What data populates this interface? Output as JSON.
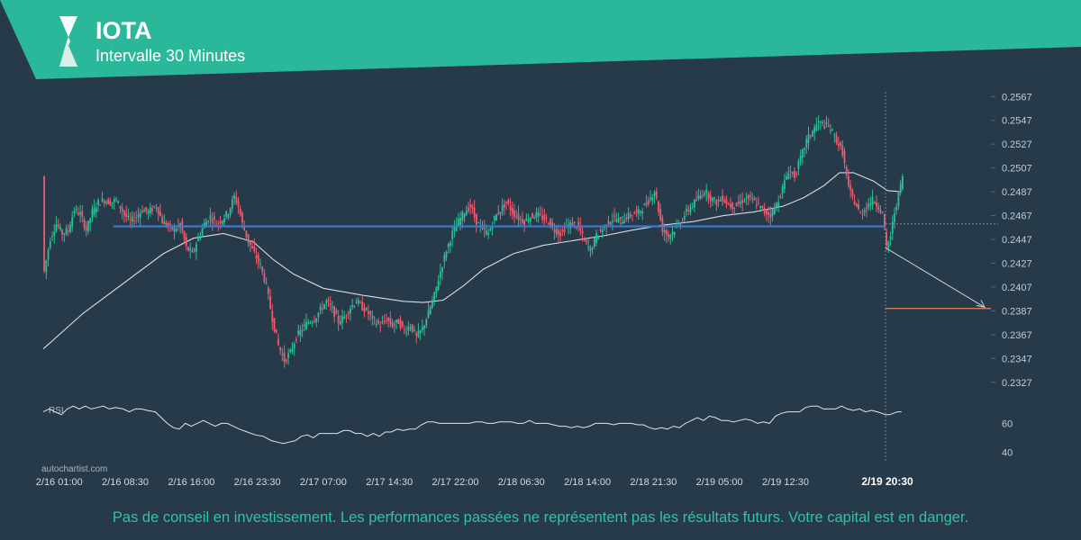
{
  "header": {
    "title": "IOTA",
    "subtitle": "Intervalle 30 Minutes",
    "brand_color": "#2bb89a"
  },
  "watermark": "autochartist.com",
  "disclaimer": "Pas de conseil en investissement. Les performances passées ne représentent pas les résultats futurs. Votre capital est en danger.",
  "colors": {
    "background": "#263a4a",
    "bull": "#2bbf95",
    "bear": "#ee5a6e",
    "support_line": "#3f78c4",
    "moving_average": "#d8dde1",
    "target_line": "#e8835e",
    "rsi_line": "#e2e6e9",
    "disclaimer": "#2fc4a2"
  },
  "chart_data": [
    {
      "type": "candlestick",
      "symbol": "IOTA",
      "interval": "30 Minutes",
      "yticks": [
        "0.2567",
        "0.2547",
        "0.2527",
        "0.2507",
        "0.2487",
        "0.2467",
        "0.2447",
        "0.2427",
        "0.2407",
        "0.2387",
        "0.2367",
        "0.2347",
        "0.2327"
      ],
      "ylim": [
        0.2317,
        0.2574
      ],
      "xticks": [
        "2/16 01:00",
        "2/16 08:30",
        "2/16 16:00",
        "2/16 23:30",
        "2/17 07:00",
        "2/17 14:30",
        "2/17 22:00",
        "2/18 06:30",
        "2/18 14:00",
        "2/18 21:30",
        "2/19 05:00",
        "2/19 12:30",
        "2/19 20:30"
      ],
      "current_time_label": "2/19 20:30",
      "close_path": [
        [
          0,
          0.242
        ],
        [
          3,
          0.2448
        ],
        [
          6,
          0.246
        ],
        [
          9,
          0.2452
        ],
        [
          12,
          0.2455
        ],
        [
          15,
          0.2472
        ],
        [
          18,
          0.2468
        ],
        [
          21,
          0.2455
        ],
        [
          24,
          0.247
        ],
        [
          27,
          0.2478
        ],
        [
          30,
          0.248
        ],
        [
          33,
          0.2478
        ],
        [
          36,
          0.248
        ],
        [
          40,
          0.2468
        ],
        [
          43,
          0.2462
        ],
        [
          46,
          0.2466
        ],
        [
          49,
          0.2472
        ],
        [
          52,
          0.247
        ],
        [
          56,
          0.2475
        ],
        [
          59,
          0.2462
        ],
        [
          62,
          0.2458
        ],
        [
          65,
          0.2455
        ],
        [
          68,
          0.246
        ],
        [
          71,
          0.244
        ],
        [
          74,
          0.2435
        ],
        [
          77,
          0.2448
        ],
        [
          80,
          0.246
        ],
        [
          83,
          0.2466
        ],
        [
          86,
          0.246
        ],
        [
          89,
          0.2464
        ],
        [
          92,
          0.247
        ],
        [
          95,
          0.2483
        ],
        [
          97,
          0.2475
        ],
        [
          99,
          0.246
        ],
        [
          102,
          0.2445
        ],
        [
          105,
          0.2435
        ],
        [
          108,
          0.2425
        ],
        [
          111,
          0.2408
        ],
        [
          114,
          0.238
        ],
        [
          117,
          0.2358
        ],
        [
          120,
          0.2345
        ],
        [
          123,
          0.2352
        ],
        [
          126,
          0.2365
        ],
        [
          129,
          0.2372
        ],
        [
          132,
          0.2378
        ],
        [
          135,
          0.238
        ],
        [
          138,
          0.2388
        ],
        [
          141,
          0.2395
        ],
        [
          144,
          0.2388
        ],
        [
          147,
          0.2378
        ],
        [
          150,
          0.2382
        ],
        [
          153,
          0.239
        ],
        [
          156,
          0.2395
        ],
        [
          159,
          0.239
        ],
        [
          162,
          0.2385
        ],
        [
          165,
          0.2378
        ],
        [
          168,
          0.2375
        ],
        [
          171,
          0.238
        ],
        [
          174,
          0.2375
        ],
        [
          177,
          0.2378
        ],
        [
          180,
          0.237
        ],
        [
          183,
          0.2375
        ],
        [
          186,
          0.2365
        ],
        [
          189,
          0.2372
        ],
        [
          192,
          0.2385
        ],
        [
          195,
          0.24
        ],
        [
          198,
          0.242
        ],
        [
          201,
          0.2438
        ],
        [
          204,
          0.2452
        ],
        [
          207,
          0.2462
        ],
        [
          210,
          0.247
        ],
        [
          213,
          0.2475
        ],
        [
          216,
          0.2462
        ],
        [
          219,
          0.2455
        ],
        [
          222,
          0.2452
        ],
        [
          225,
          0.2465
        ],
        [
          228,
          0.2472
        ],
        [
          231,
          0.2478
        ],
        [
          234,
          0.247
        ],
        [
          237,
          0.2465
        ],
        [
          240,
          0.2462
        ],
        [
          243,
          0.2466
        ],
        [
          246,
          0.2468
        ],
        [
          249,
          0.2465
        ],
        [
          252,
          0.2462
        ],
        [
          255,
          0.2455
        ],
        [
          258,
          0.2452
        ],
        [
          261,
          0.2458
        ],
        [
          264,
          0.246
        ],
        [
          267,
          0.2458
        ],
        [
          270,
          0.2445
        ],
        [
          273,
          0.2438
        ],
        [
          276,
          0.245
        ],
        [
          279,
          0.2456
        ],
        [
          282,
          0.2462
        ],
        [
          285,
          0.2465
        ],
        [
          288,
          0.2462
        ],
        [
          291,
          0.2466
        ],
        [
          294,
          0.2468
        ],
        [
          297,
          0.247
        ],
        [
          300,
          0.2475
        ],
        [
          303,
          0.2482
        ],
        [
          305,
          0.2488
        ],
        [
          307,
          0.2472
        ],
        [
          309,
          0.2455
        ],
        [
          312,
          0.245
        ],
        [
          315,
          0.2455
        ],
        [
          318,
          0.2462
        ],
        [
          321,
          0.247
        ],
        [
          324,
          0.2476
        ],
        [
          327,
          0.2482
        ],
        [
          330,
          0.2488
        ],
        [
          333,
          0.2482
        ],
        [
          336,
          0.2478
        ],
        [
          339,
          0.2482
        ],
        [
          342,
          0.2476
        ],
        [
          345,
          0.2475
        ],
        [
          348,
          0.2478
        ],
        [
          351,
          0.2482
        ],
        [
          354,
          0.248
        ],
        [
          357,
          0.2475
        ],
        [
          360,
          0.247
        ],
        [
          363,
          0.2468
        ],
        [
          366,
          0.2476
        ],
        [
          369,
          0.249
        ],
        [
          372,
          0.2505
        ],
        [
          375,
          0.25
        ],
        [
          378,
          0.2515
        ],
        [
          381,
          0.253
        ],
        [
          384,
          0.2538
        ],
        [
          387,
          0.2545
        ],
        [
          390,
          0.2543
        ],
        [
          393,
          0.254
        ],
        [
          396,
          0.253
        ],
        [
          399,
          0.252
        ],
        [
          402,
          0.249
        ],
        [
          405,
          0.2478
        ],
        [
          408,
          0.2468
        ],
        [
          411,
          0.2475
        ],
        [
          414,
          0.248
        ],
        [
          417,
          0.2475
        ],
        [
          419,
          0.2468
        ],
        [
          421,
          0.244
        ],
        [
          423,
          0.245
        ],
        [
          425,
          0.247
        ],
        [
          427,
          0.2485
        ],
        [
          429,
          0.25
        ]
      ],
      "moving_average_path": [
        [
          0,
          0.2355
        ],
        [
          20,
          0.2385
        ],
        [
          40,
          0.241
        ],
        [
          60,
          0.2435
        ],
        [
          75,
          0.2448
        ],
        [
          90,
          0.2452
        ],
        [
          105,
          0.2445
        ],
        [
          115,
          0.243
        ],
        [
          125,
          0.2418
        ],
        [
          140,
          0.2406
        ],
        [
          160,
          0.24
        ],
        [
          180,
          0.2395
        ],
        [
          190,
          0.2394
        ],
        [
          200,
          0.2396
        ],
        [
          210,
          0.2408
        ],
        [
          220,
          0.2422
        ],
        [
          235,
          0.2435
        ],
        [
          250,
          0.2442
        ],
        [
          265,
          0.2446
        ],
        [
          280,
          0.245
        ],
        [
          295,
          0.2455
        ],
        [
          310,
          0.2459
        ],
        [
          325,
          0.2462
        ],
        [
          340,
          0.2467
        ],
        [
          355,
          0.247
        ],
        [
          370,
          0.2475
        ],
        [
          380,
          0.2482
        ],
        [
          390,
          0.2492
        ],
        [
          398,
          0.2503
        ],
        [
          405,
          0.2503
        ],
        [
          415,
          0.2496
        ],
        [
          422,
          0.2488
        ],
        [
          429,
          0.2487
        ]
      ],
      "horizontal_support": 0.2458,
      "support_range": [
        35,
        421
      ],
      "projection_arrow": {
        "from": [
          421,
          0.244
        ],
        "to": [
          460,
          0.239
        ]
      },
      "target_level": 0.2389,
      "current_price_level": 0.246
    },
    {
      "type": "line",
      "name": "RSI",
      "yticks": [
        "60",
        "40"
      ],
      "ylim": [
        34,
        79
      ],
      "values": [
        [
          0,
          68
        ],
        [
          3,
          70
        ],
        [
          6,
          68
        ],
        [
          9,
          66
        ],
        [
          12,
          70
        ],
        [
          15,
          72
        ],
        [
          18,
          70
        ],
        [
          21,
          72
        ],
        [
          24,
          70
        ],
        [
          27,
          71
        ],
        [
          30,
          72
        ],
        [
          33,
          70
        ],
        [
          36,
          71
        ],
        [
          40,
          70
        ],
        [
          43,
          68
        ],
        [
          46,
          70
        ],
        [
          49,
          70
        ],
        [
          52,
          69
        ],
        [
          56,
          68
        ],
        [
          59,
          64
        ],
        [
          62,
          60
        ],
        [
          65,
          57
        ],
        [
          68,
          56
        ],
        [
          71,
          60
        ],
        [
          74,
          58
        ],
        [
          77,
          60
        ],
        [
          80,
          62
        ],
        [
          83,
          60
        ],
        [
          86,
          58
        ],
        [
          89,
          60
        ],
        [
          92,
          60
        ],
        [
          95,
          58
        ],
        [
          98,
          56
        ],
        [
          102,
          54
        ],
        [
          106,
          52
        ],
        [
          110,
          51
        ],
        [
          114,
          48
        ],
        [
          117,
          47
        ],
        [
          120,
          46
        ],
        [
          123,
          47
        ],
        [
          126,
          48
        ],
        [
          129,
          51
        ],
        [
          132,
          52
        ],
        [
          135,
          50
        ],
        [
          138,
          53
        ],
        [
          141,
          53
        ],
        [
          144,
          53
        ],
        [
          147,
          53
        ],
        [
          150,
          55
        ],
        [
          153,
          55
        ],
        [
          156,
          53
        ],
        [
          159,
          53
        ],
        [
          162,
          51
        ],
        [
          165,
          53
        ],
        [
          168,
          51
        ],
        [
          171,
          54
        ],
        [
          174,
          54
        ],
        [
          177,
          56
        ],
        [
          180,
          55
        ],
        [
          183,
          56
        ],
        [
          186,
          56
        ],
        [
          189,
          59
        ],
        [
          192,
          61
        ],
        [
          195,
          61
        ],
        [
          198,
          60
        ],
        [
          201,
          60
        ],
        [
          204,
          60
        ],
        [
          207,
          60
        ],
        [
          210,
          60
        ],
        [
          213,
          60
        ],
        [
          216,
          61
        ],
        [
          219,
          61
        ],
        [
          222,
          60
        ],
        [
          225,
          60
        ],
        [
          228,
          61
        ],
        [
          231,
          61
        ],
        [
          234,
          61
        ],
        [
          237,
          60
        ],
        [
          240,
          60
        ],
        [
          243,
          62
        ],
        [
          246,
          60
        ],
        [
          249,
          60
        ],
        [
          252,
          60
        ],
        [
          255,
          59
        ],
        [
          258,
          58
        ],
        [
          261,
          58
        ],
        [
          264,
          57
        ],
        [
          267,
          58
        ],
        [
          270,
          57
        ],
        [
          273,
          58
        ],
        [
          276,
          60
        ],
        [
          279,
          60
        ],
        [
          282,
          60
        ],
        [
          285,
          59
        ],
        [
          288,
          60
        ],
        [
          291,
          60
        ],
        [
          294,
          60
        ],
        [
          297,
          59
        ],
        [
          300,
          59
        ],
        [
          303,
          57
        ],
        [
          306,
          56
        ],
        [
          309,
          57
        ],
        [
          312,
          56
        ],
        [
          315,
          58
        ],
        [
          318,
          57
        ],
        [
          321,
          60
        ],
        [
          324,
          62
        ],
        [
          327,
          64
        ],
        [
          330,
          62
        ],
        [
          333,
          65
        ],
        [
          336,
          64
        ],
        [
          339,
          62
        ],
        [
          342,
          62
        ],
        [
          345,
          61
        ],
        [
          348,
          62
        ],
        [
          351,
          63
        ],
        [
          354,
          62
        ],
        [
          357,
          60
        ],
        [
          360,
          61
        ],
        [
          363,
          60
        ],
        [
          366,
          65
        ],
        [
          369,
          67
        ],
        [
          372,
          68
        ],
        [
          375,
          68
        ],
        [
          378,
          68
        ],
        [
          381,
          71
        ],
        [
          384,
          72
        ],
        [
          387,
          72
        ],
        [
          390,
          70
        ],
        [
          393,
          70
        ],
        [
          396,
          70
        ],
        [
          399,
          72
        ],
        [
          402,
          70
        ],
        [
          405,
          69
        ],
        [
          408,
          70
        ],
        [
          411,
          68
        ],
        [
          414,
          69
        ],
        [
          417,
          68
        ],
        [
          419,
          67
        ],
        [
          421,
          66
        ],
        [
          423,
          66
        ],
        [
          425,
          67
        ],
        [
          427,
          68
        ],
        [
          429,
          68
        ]
      ]
    }
  ]
}
